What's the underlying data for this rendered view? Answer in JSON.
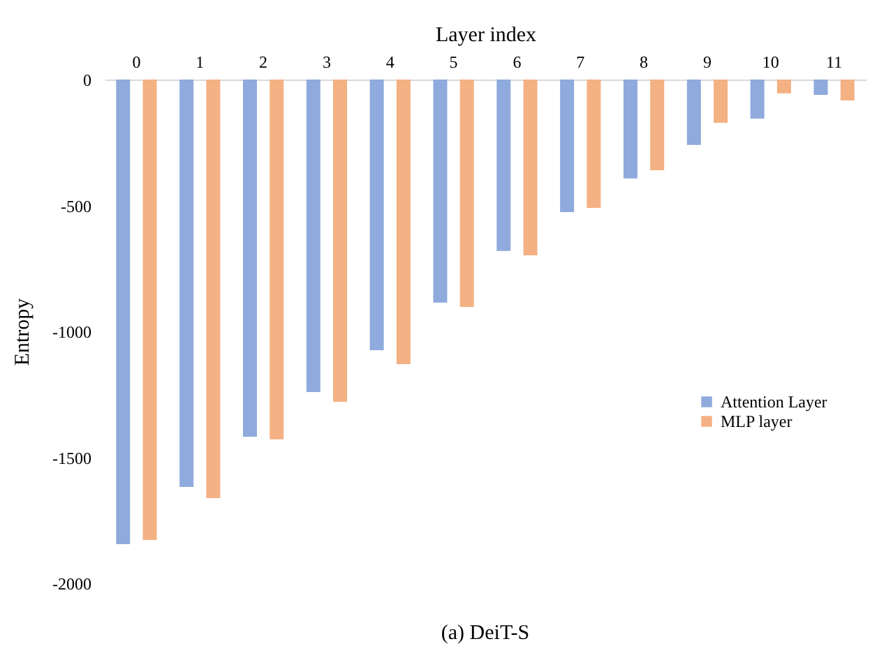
{
  "chart_data": {
    "type": "bar",
    "title": "(a) DeiT-S",
    "xlabel": "Layer index",
    "ylabel": "Entropy",
    "categories": [
      "0",
      "1",
      "2",
      "3",
      "4",
      "5",
      "6",
      "7",
      "8",
      "9",
      "10",
      "11"
    ],
    "series": [
      {
        "name": "Attention Layer",
        "color": "#8faadc",
        "values": [
          -1845,
          -1618,
          -1418,
          -1241,
          -1075,
          -886,
          -681,
          -526,
          -393,
          -260,
          -155,
          -61
        ]
      },
      {
        "name": "MLP layer",
        "color": "#f4b183",
        "values": [
          -1828,
          -1662,
          -1429,
          -1280,
          -1130,
          -903,
          -698,
          -510,
          -360,
          -172,
          -55,
          -83
        ]
      }
    ],
    "ylim": [
      -2000,
      0
    ],
    "yticks": [
      -2000,
      -1500,
      -1000,
      -500,
      0
    ],
    "grid": false,
    "legend": "right"
  }
}
